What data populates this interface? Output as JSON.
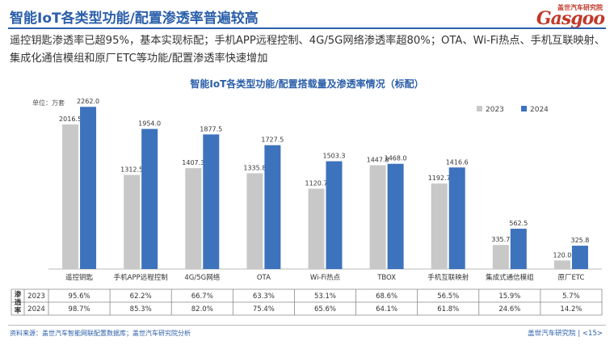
{
  "header": {
    "title": "智能IoT各类型功能/配置渗透率普遍较高",
    "subtitle": "遥控钥匙渗透率已超95%，基本实现标配；手机APP远程控制、4G/5G网络渗透率超80%；OTA、Wi-Fi热点、手机互联映射、集成化通信模组和原厂ETC等功能/配置渗透率快速增加",
    "logo_cn": "盖世汽车研究院",
    "logo_en": "Gasgoo"
  },
  "footer": {
    "source": "资料来源：盖世汽车智能网联配置数据库；盖世汽车研究院分析",
    "page": "盖世汽车研究院 | <15>"
  },
  "colors": {
    "s2023": "#c8c8c8",
    "s2024": "#3d72bd",
    "accent": "#2b5faa"
  },
  "chart_data": {
    "type": "bar",
    "title": "智能IoT各类型功能/配置搭载量及渗透率情况（标配）",
    "unit_label": "单位：万套",
    "categories": [
      "遥控钥匙",
      "手机APP远程控制",
      "4G/5G网络",
      "OTA",
      "Wi-Fi热点",
      "TBOX",
      "手机互联映射",
      "集成式通信模组",
      "原厂ETC"
    ],
    "series": [
      {
        "name": "2023",
        "values": [
          2016.5,
          1312.5,
          1407.3,
          1335.8,
          1120.7,
          1447.8,
          1192.7,
          335.7,
          120.0
        ]
      },
      {
        "name": "2024",
        "values": [
          2262.0,
          1954.0,
          1877.5,
          1727.5,
          1503.3,
          1468.0,
          1416.6,
          562.5,
          325.8
        ]
      }
    ],
    "value_labels": {
      "2023": [
        "2016.5",
        "1312.5",
        "1407.3",
        "1335.8",
        "1120.7",
        "1447.8",
        "1192.7",
        "335.7",
        "120.0"
      ],
      "2024": [
        "2262.0",
        "1954.0",
        "1877.5",
        "1727.5",
        "1503.3",
        "1468.0",
        "1416.6",
        "562.5",
        "325.8"
      ]
    },
    "ylim": [
      0,
      2400
    ],
    "legend_position": "top-right",
    "table": {
      "row_header": "渗透率",
      "rows": [
        {
          "year": "2023",
          "values": [
            "95.6%",
            "62.2%",
            "66.7%",
            "63.3%",
            "53.1%",
            "68.6%",
            "56.5%",
            "15.9%",
            "5.7%"
          ]
        },
        {
          "year": "2024",
          "values": [
            "98.7%",
            "85.3%",
            "82.0%",
            "75.4%",
            "65.6%",
            "64.1%",
            "61.8%",
            "24.6%",
            "14.2%"
          ]
        }
      ]
    }
  }
}
